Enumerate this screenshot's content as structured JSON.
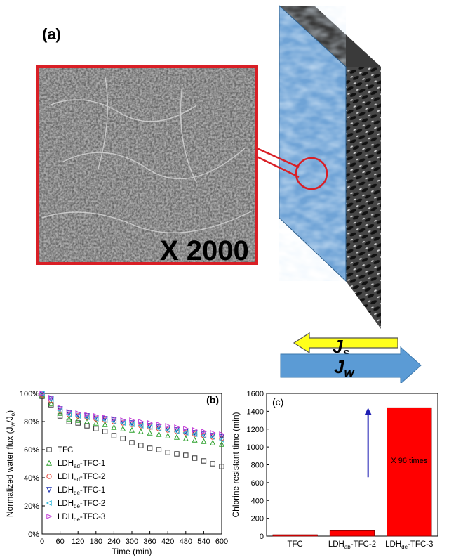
{
  "figure": {
    "panel_a_label": "(a)",
    "panel_b_label": "(b)",
    "panel_c_label": "(c)",
    "magnification_label": "X 2000",
    "arrow_js_label": "J",
    "arrow_js_sub": "s",
    "arrow_jw_label": "J",
    "arrow_jw_sub": "w",
    "colors": {
      "inset_border": "#d91f26",
      "membrane_face": "#6fa3d6",
      "arrow_js": "#ffff1a",
      "arrow_jw": "#5b9bd5",
      "bar": "#ff0000",
      "annotation_arrow": "#1f1fb4"
    }
  },
  "chart_data": [
    {
      "id": "b",
      "type": "scatter",
      "xlabel": "Time (min)",
      "ylabel_main": "Normalized water flux (J",
      "ylabel_sub1": "w",
      "ylabel_mid": "/J",
      "ylabel_sub2": "o",
      "ylabel_end": ")",
      "xlim": [
        0,
        600
      ],
      "ylim": [
        0,
        100
      ],
      "xticks": [
        "0",
        "60",
        "120",
        "180",
        "240",
        "300",
        "360",
        "420",
        "480",
        "540",
        "600"
      ],
      "yticks": [
        "0%",
        "20%",
        "40%",
        "60%",
        "80%",
        "100%"
      ],
      "legend_position": "left",
      "series": [
        {
          "name": "TFC",
          "name_main": "TFC",
          "name_sub": "",
          "name_end": "",
          "marker": "square",
          "color": "#333333",
          "points": [
            [
              0,
              98
            ],
            [
              30,
              92
            ],
            [
              60,
              84
            ],
            [
              90,
              80
            ],
            [
              120,
              79
            ],
            [
              150,
              77
            ],
            [
              180,
              75
            ],
            [
              210,
              73
            ],
            [
              240,
              70
            ],
            [
              270,
              68
            ],
            [
              300,
              65
            ],
            [
              330,
              63
            ],
            [
              360,
              61
            ],
            [
              390,
              60
            ],
            [
              420,
              58
            ],
            [
              450,
              57
            ],
            [
              480,
              56
            ],
            [
              510,
              54
            ],
            [
              540,
              52
            ],
            [
              570,
              50
            ],
            [
              600,
              48
            ]
          ]
        },
        {
          "name": "LDHad-TFC-1",
          "name_main": "LDH",
          "name_sub": "ad",
          "name_end": "-TFC-1",
          "marker": "triangle-up",
          "color": "#2ca02c",
          "points": [
            [
              0,
              99
            ],
            [
              30,
              93
            ],
            [
              60,
              86
            ],
            [
              90,
              82
            ],
            [
              120,
              81
            ],
            [
              150,
              80
            ],
            [
              180,
              79
            ],
            [
              210,
              78
            ],
            [
              240,
              76
            ],
            [
              270,
              75
            ],
            [
              300,
              74
            ],
            [
              330,
              73
            ],
            [
              360,
              72
            ],
            [
              390,
              71
            ],
            [
              420,
              70
            ],
            [
              450,
              69
            ],
            [
              480,
              68
            ],
            [
              510,
              67
            ],
            [
              540,
              66
            ],
            [
              570,
              65
            ],
            [
              600,
              64
            ]
          ]
        },
        {
          "name": "LDHad-TFC-2",
          "name_main": "LDH",
          "name_sub": "ad",
          "name_end": "-TFC-2",
          "marker": "circle",
          "color": "#e8473a",
          "points": [
            [
              0,
              99
            ],
            [
              30,
              95
            ],
            [
              60,
              88
            ],
            [
              90,
              85
            ],
            [
              120,
              84
            ],
            [
              150,
              83
            ],
            [
              180,
              82
            ],
            [
              210,
              81
            ],
            [
              240,
              80
            ],
            [
              270,
              79
            ],
            [
              300,
              78
            ],
            [
              330,
              77
            ],
            [
              360,
              76
            ],
            [
              390,
              75
            ],
            [
              420,
              74
            ],
            [
              450,
              73
            ],
            [
              480,
              72
            ],
            [
              510,
              71
            ],
            [
              540,
              70
            ],
            [
              570,
              69
            ],
            [
              600,
              68
            ]
          ]
        },
        {
          "name": "LDHde-TFC-1",
          "name_main": "LDH",
          "name_sub": "de",
          "name_end": "-TFC-1",
          "marker": "triangle-down",
          "color": "#1a2fb0",
          "points": [
            [
              0,
              100
            ],
            [
              30,
              96
            ],
            [
              60,
              89
            ],
            [
              90,
              86
            ],
            [
              120,
              85
            ],
            [
              150,
              84
            ],
            [
              180,
              83
            ],
            [
              210,
              82
            ],
            [
              240,
              81
            ],
            [
              270,
              80
            ],
            [
              300,
              79
            ],
            [
              330,
              78
            ],
            [
              360,
              77
            ],
            [
              390,
              76
            ],
            [
              420,
              75
            ],
            [
              450,
              74
            ],
            [
              480,
              73
            ],
            [
              510,
              72
            ],
            [
              540,
              71
            ],
            [
              570,
              70
            ],
            [
              600,
              69
            ]
          ]
        },
        {
          "name": "LDHde-TFC-2",
          "name_main": "LDH",
          "name_sub": "de",
          "name_end": "-TFC-2",
          "marker": "triangle-left",
          "color": "#2bb5d8",
          "points": [
            [
              0,
              100
            ],
            [
              30,
              96
            ],
            [
              60,
              88
            ],
            [
              90,
              85
            ],
            [
              120,
              84
            ],
            [
              150,
              83
            ],
            [
              180,
              82
            ],
            [
              210,
              81
            ],
            [
              240,
              80
            ],
            [
              270,
              79
            ],
            [
              300,
              78
            ],
            [
              330,
              77
            ],
            [
              360,
              76
            ],
            [
              390,
              75
            ],
            [
              420,
              74
            ],
            [
              450,
              73
            ],
            [
              480,
              72
            ],
            [
              510,
              71
            ],
            [
              540,
              70
            ],
            [
              570,
              69
            ],
            [
              600,
              67
            ]
          ]
        },
        {
          "name": "LDHde-TFC-3",
          "name_main": "LDH",
          "name_sub": "de",
          "name_end": "-TFC-3",
          "marker": "triangle-right",
          "color": "#c23bd6",
          "points": [
            [
              0,
              100
            ],
            [
              30,
              97
            ],
            [
              60,
              90
            ],
            [
              90,
              87
            ],
            [
              120,
              86
            ],
            [
              150,
              85
            ],
            [
              180,
              84
            ],
            [
              210,
              83
            ],
            [
              240,
              82
            ],
            [
              270,
              81
            ],
            [
              300,
              81
            ],
            [
              330,
              80
            ],
            [
              360,
              79
            ],
            [
              390,
              78
            ],
            [
              420,
              77
            ],
            [
              450,
              76
            ],
            [
              480,
              75
            ],
            [
              510,
              74
            ],
            [
              540,
              73
            ],
            [
              570,
              72
            ],
            [
              600,
              71
            ]
          ]
        }
      ]
    },
    {
      "id": "c",
      "type": "bar",
      "ylabel": "Chlorine resistant  time (min)",
      "ylim": [
        0,
        1600
      ],
      "yticks": [
        "0",
        "200",
        "400",
        "600",
        "800",
        "1000",
        "1200",
        "1400",
        "1600"
      ],
      "categories": [
        "TFC",
        "LDHab-TFC-2",
        "LDHde-TFC-3"
      ],
      "category_parts": [
        {
          "main": "TFC",
          "sub": "",
          "end": ""
        },
        {
          "main": "LDH",
          "sub": "ab",
          "end": "-TFC-2"
        },
        {
          "main": "LDH",
          "sub": "de",
          "end": "-TFC-3"
        }
      ],
      "values": [
        15,
        60,
        1440
      ],
      "annotation": "X 96 times"
    }
  ]
}
